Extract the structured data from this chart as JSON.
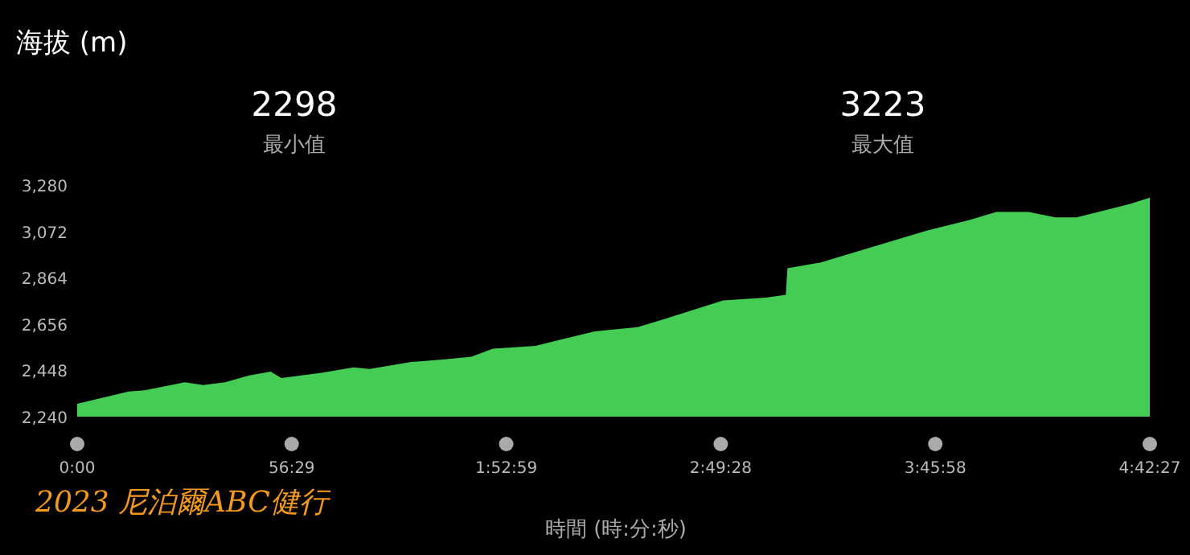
{
  "chart_data": {
    "type": "area",
    "ylabel": "海拔 (m)",
    "xlabel": "時間 (時:分:秒)",
    "annotations": [
      "2298",
      "最小值",
      "3223",
      "最大值",
      "2023 尼泊爾ABC健行"
    ],
    "x": [
      0,
      13.56,
      17.76,
      28.32,
      33.3,
      38.94,
      45.3,
      50.94,
      53.76,
      64.32,
      72.78,
      76.98,
      87.6,
      96.78,
      103.8,
      109.44,
      120.72,
      126.42,
      136.26,
      147.54,
      154.56,
      170.1,
      181.38,
      186.6,
      187.02,
      195.48,
      209.58,
      223.68,
      234.96,
      242.04,
      250.5,
      257.58,
      263.16,
      271.62,
      277.26,
      282.45
    ],
    "series": [
      {
        "color": "#45cc55",
        "values": [
          2298,
          2353,
          2358,
          2394,
          2382,
          2394,
          2425,
          2442,
          2413,
          2437,
          2461,
          2454,
          2485,
          2497,
          2509,
          2545,
          2558,
          2582,
          2623,
          2642,
          2678,
          2762,
          2774,
          2787,
          2906,
          2931,
          3003,
          3075,
          3123,
          3159,
          3159,
          3135,
          3135,
          3171,
          3195,
          3223
        ]
      }
    ],
    "xlim": [
      0,
      282.45
    ],
    "xticks": [
      {
        "value": 0,
        "label": "0:00"
      },
      {
        "value": 56.483,
        "label": "56:29"
      },
      {
        "value": 112.983,
        "label": "1:52:59"
      },
      {
        "value": 169.467,
        "label": "2:49:28"
      },
      {
        "value": 225.967,
        "label": "3:45:58"
      },
      {
        "value": 282.45,
        "label": "4:42:27"
      }
    ],
    "ylim": [
      2240,
      3280
    ],
    "yticks": [
      {
        "value": 2240,
        "label": "2,240"
      },
      {
        "value": 2448,
        "label": "2,448"
      },
      {
        "value": 2656,
        "label": "2,656"
      },
      {
        "value": 2864,
        "label": "2,864"
      },
      {
        "value": 3072,
        "label": "3,072"
      },
      {
        "value": 3280,
        "label": "3,280"
      }
    ]
  }
}
